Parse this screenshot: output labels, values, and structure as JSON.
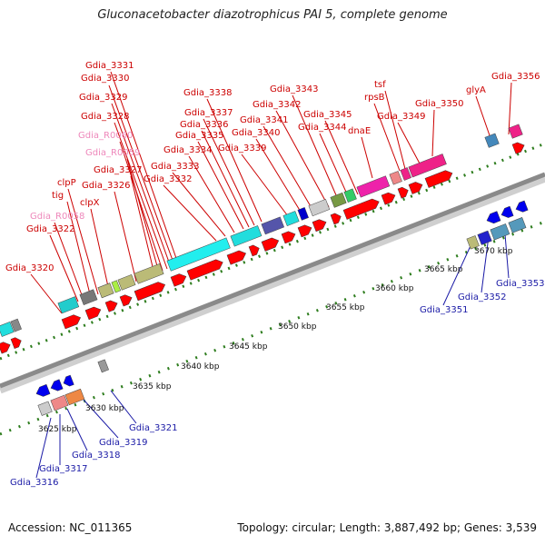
{
  "title": "Gluconacetobacter diazotrophicus PAI 5, complete genome",
  "footer": {
    "accession": "Accession: NC_011365",
    "summary": "Topology: circular; Length: 3,887,492 bp; Genes: 3,539"
  },
  "colors": {
    "forward_label": "#cc0000",
    "reverse_label": "#1a1aa6",
    "rna_label": "#ee88bb",
    "cds": "#ff0000",
    "cds_reverse": "#0000ee",
    "backbone": "#888888",
    "tick": "#2e7d1e"
  },
  "ticks": [
    {
      "label": "3625 kbp"
    },
    {
      "label": "3630 kbp"
    },
    {
      "label": "3635 kbp"
    },
    {
      "label": "3640 kbp"
    },
    {
      "label": "3645 kbp"
    },
    {
      "label": "3650 kbp"
    },
    {
      "label": "3655 kbp"
    },
    {
      "label": "3660 kbp"
    },
    {
      "label": "3665 kbp"
    },
    {
      "label": "3670 kbp"
    }
  ],
  "forward_genes": [
    "Gdia_3331",
    "Gdia_3330",
    "Gdia_3329",
    "Gdia_3328",
    "Gdia_R0060",
    "Gdia_R0059",
    "Gdia_3327",
    "Gdia_3326",
    "clpP",
    "tig",
    "clpX",
    "Gdia_R0058",
    "Gdia_3322",
    "Gdia_3320",
    "Gdia_3338",
    "Gdia_3337",
    "Gdia_3336",
    "Gdia_3335",
    "Gdia_3334",
    "Gdia_3333",
    "Gdia_3332",
    "Gdia_3343",
    "Gdia_3342",
    "Gdia_3341",
    "Gdia_3340",
    "Gdia_3339",
    "Gdia_3345",
    "Gdia_3344",
    "dnaE",
    "tsf",
    "rpsB",
    "Gdia_3349",
    "Gdia_3350",
    "glyA",
    "Gdia_3356"
  ],
  "reverse_genes": [
    "Gdia_3353",
    "Gdia_3352",
    "Gdia_3351",
    "Gdia_3321",
    "Gdia_3319",
    "Gdia_3318",
    "Gdia_3317",
    "Gdia_3316"
  ]
}
